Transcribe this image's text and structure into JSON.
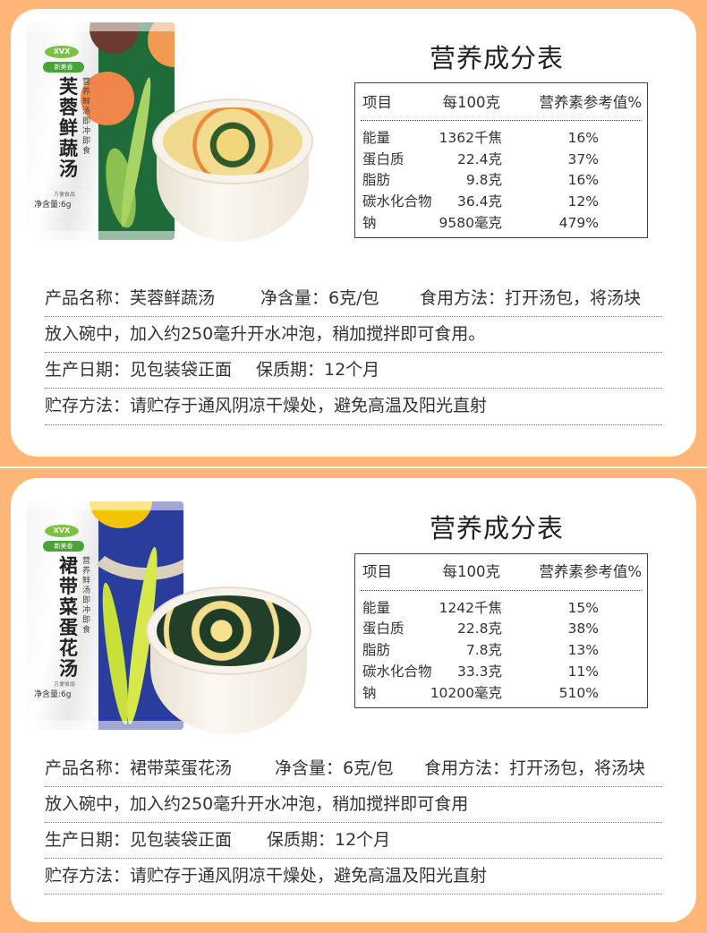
{
  "colors": {
    "background": "#FFB676",
    "card": "#FFFFFF",
    "pack1_accent": "#1F6B3A",
    "pack2_accent": "#2A3C9C"
  },
  "products": [
    {
      "package": {
        "logo": "XVX",
        "brand": "新美香",
        "name": "芙蓉鲜蔬汤",
        "slogan": "营养鲜汤 即冲即食",
        "kind": "方便食品",
        "net": "净含量:6g"
      },
      "nutrition": {
        "title": "营养成分表",
        "headers": [
          "项目",
          "每100克",
          "营养素参考值%"
        ],
        "rows": [
          [
            "能量",
            "1362千焦",
            "16%"
          ],
          [
            "蛋白质",
            "22.4克",
            "37%"
          ],
          [
            "脂肪",
            "9.8克",
            "16%"
          ],
          [
            "碳水化合物",
            "36.4克",
            "12%"
          ],
          [
            "钠",
            "9580毫克",
            "479%"
          ]
        ]
      },
      "info": {
        "name": "产品名称：芙蓉鲜蔬汤",
        "net": "净含量：6克/包",
        "usage": "食用方法：打开汤包，将汤块",
        "usage_cont": "放入碗中，加入约250毫升开水冲泡，稍加搅拌即可食用。",
        "production_date": "生产日期：见包装袋正面",
        "shelf_life": "保质期：12个月",
        "storage": "贮存方法：请贮存于通风阴凉干燥处，避免高温及阳光直射"
      }
    },
    {
      "package": {
        "logo": "XVX",
        "brand": "新美香",
        "name": "裙带菜蛋花汤",
        "slogan": "营养鲜汤 即冲即食",
        "kind": "方便食品",
        "net": "净含量:6g"
      },
      "nutrition": {
        "title": "营养成分表",
        "headers": [
          "项目",
          "每100克",
          "营养素参考值%"
        ],
        "rows": [
          [
            "能量",
            "1242千焦",
            "15%"
          ],
          [
            "蛋白质",
            "22.8克",
            "38%"
          ],
          [
            "脂肪",
            "7.8克",
            "13%"
          ],
          [
            "碳水化合物",
            "33.3克",
            "11%"
          ],
          [
            "钠",
            "10200毫克",
            "510%"
          ]
        ]
      },
      "info": {
        "name": "产品名称：裙带菜蛋花汤",
        "net": "净含量：6克/包",
        "usage": "食用方法：打开汤包，将汤块",
        "usage_cont": "放入碗中，加入约250毫升开水冲泡，稍加搅拌即可食用",
        "production_date": "生产日期：见包装袋正面",
        "shelf_life": "保质期：12个月",
        "storage": "贮存方法：请贮存于通风阴凉干燥处，避免高温及阳光直射"
      }
    }
  ]
}
